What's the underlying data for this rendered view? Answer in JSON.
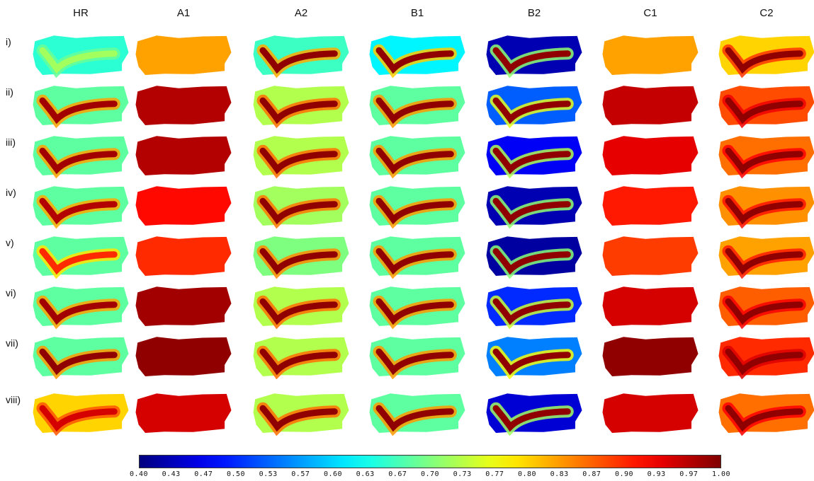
{
  "columns": [
    "HR",
    "A1",
    "A2",
    "B1",
    "B2",
    "C1",
    "C2"
  ],
  "rows": [
    "i)",
    "ii)",
    "iii)",
    "iv)",
    "v)",
    "vi)",
    "vii)",
    "viii)"
  ],
  "colorbar": {
    "min": 0.4,
    "max": 1.0,
    "colormap": "jet",
    "tick_labels": [
      "0.40",
      "0.43",
      "0.47",
      "0.50",
      "0.53",
      "0.57",
      "0.60",
      "0.63",
      "0.67",
      "0.70",
      "0.73",
      "0.77",
      "0.80",
      "0.83",
      "0.87",
      "0.90",
      "0.93",
      "0.97",
      "1.00"
    ]
  },
  "panels": {
    "HR": [
      {
        "background": 0.65,
        "foreground": 0.72
      },
      {
        "background": 0.68,
        "foreground": 0.98
      },
      {
        "background": 0.68,
        "foreground": 0.98
      },
      {
        "background": 0.68,
        "foreground": 0.97
      },
      {
        "background": 0.68,
        "foreground": 0.9
      },
      {
        "background": 0.68,
        "foreground": 0.98
      },
      {
        "background": 0.68,
        "foreground": 0.99
      },
      {
        "background": 0.8,
        "foreground": 0.95
      }
    ],
    "A1": [
      {
        "background": 0.83,
        "foreground": 0.83
      },
      {
        "background": 0.97,
        "foreground": 0.97
      },
      {
        "background": 0.97,
        "foreground": 0.97
      },
      {
        "background": 0.92,
        "foreground": 0.92
      },
      {
        "background": 0.9,
        "foreground": 0.9
      },
      {
        "background": 0.98,
        "foreground": 0.98
      },
      {
        "background": 0.99,
        "foreground": 0.99
      },
      {
        "background": 0.95,
        "foreground": 0.95
      }
    ],
    "A2": [
      {
        "background": 0.66,
        "foreground": 0.99
      },
      {
        "background": 0.73,
        "foreground": 0.99
      },
      {
        "background": 0.73,
        "foreground": 0.99
      },
      {
        "background": 0.72,
        "foreground": 0.99
      },
      {
        "background": 0.7,
        "foreground": 0.99
      },
      {
        "background": 0.73,
        "foreground": 0.99
      },
      {
        "background": 0.73,
        "foreground": 0.99
      },
      {
        "background": 0.73,
        "foreground": 0.99
      }
    ],
    "B1": [
      {
        "background": 0.62,
        "foreground": 0.99
      },
      {
        "background": 0.68,
        "foreground": 0.99
      },
      {
        "background": 0.68,
        "foreground": 0.99
      },
      {
        "background": 0.68,
        "foreground": 0.99
      },
      {
        "background": 0.68,
        "foreground": 0.99
      },
      {
        "background": 0.68,
        "foreground": 0.99
      },
      {
        "background": 0.68,
        "foreground": 0.99
      },
      {
        "background": 0.68,
        "foreground": 0.99
      }
    ],
    "B2": [
      {
        "background": 0.43,
        "foreground": 0.99
      },
      {
        "background": 0.53,
        "foreground": 0.99
      },
      {
        "background": 0.47,
        "foreground": 0.99
      },
      {
        "background": 0.43,
        "foreground": 0.99
      },
      {
        "background": 0.42,
        "foreground": 0.99
      },
      {
        "background": 0.5,
        "foreground": 0.99
      },
      {
        "background": 0.55,
        "foreground": 0.99
      },
      {
        "background": 0.45,
        "foreground": 0.99
      }
    ],
    "C1": [
      {
        "background": 0.83,
        "foreground": 0.83
      },
      {
        "background": 0.96,
        "foreground": 0.96
      },
      {
        "background": 0.94,
        "foreground": 0.94
      },
      {
        "background": 0.91,
        "foreground": 0.91
      },
      {
        "background": 0.89,
        "foreground": 0.89
      },
      {
        "background": 0.95,
        "foreground": 0.95
      },
      {
        "background": 0.99,
        "foreground": 0.99
      },
      {
        "background": 0.95,
        "foreground": 0.95
      }
    ],
    "C2": [
      {
        "background": 0.8,
        "foreground": 0.99
      },
      {
        "background": 0.88,
        "foreground": 0.99
      },
      {
        "background": 0.86,
        "foreground": 0.99
      },
      {
        "background": 0.84,
        "foreground": 0.99
      },
      {
        "background": 0.83,
        "foreground": 0.99
      },
      {
        "background": 0.87,
        "foreground": 0.99
      },
      {
        "background": 0.9,
        "foreground": 0.99
      },
      {
        "background": 0.86,
        "foreground": 0.99
      }
    ]
  }
}
